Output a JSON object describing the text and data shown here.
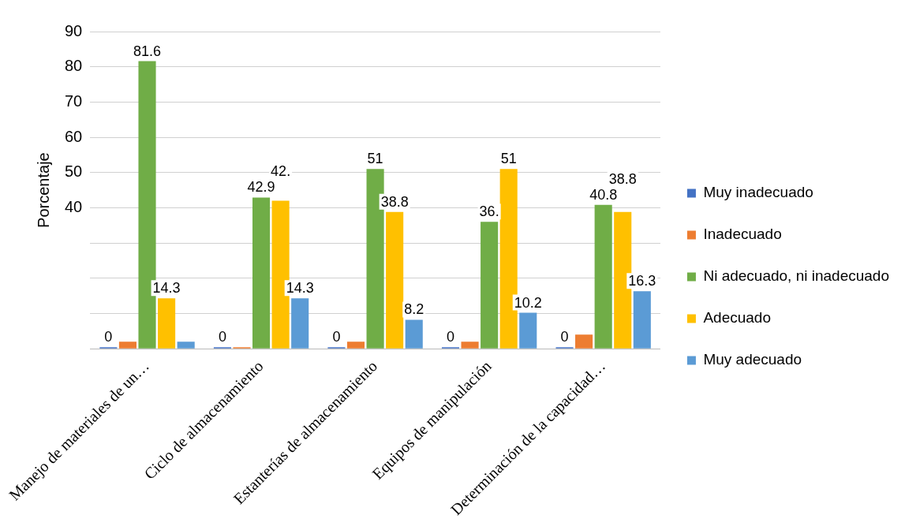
{
  "chart_data": {
    "type": "bar",
    "ylabel": "Porcentaje",
    "categories": [
      "Manejo de materiales de un…",
      "Ciclo de almacenamiento",
      "Estanterías de almacenamiento",
      "Equipos de manipulación",
      "Determinación de la capacidad…"
    ],
    "series": [
      {
        "name": "Muy inadecuado",
        "color": "#4472c4",
        "values": [
          0,
          0,
          0,
          0,
          0
        ],
        "value_labels": [
          "0",
          "0",
          "0",
          "0",
          "0"
        ]
      },
      {
        "name": "Inadecuado",
        "color": "#ed7d31",
        "values": [
          2,
          0,
          2,
          2,
          4
        ],
        "value_labels": [
          null,
          null,
          null,
          null,
          null
        ]
      },
      {
        "name": "Ni adecuado, ni inadecuado",
        "color": "#70ad47",
        "values": [
          81.6,
          42.9,
          51,
          36,
          40.8
        ],
        "value_labels": [
          "81.6",
          "42.9",
          "51",
          "36.",
          "40.8"
        ]
      },
      {
        "name": "Adecuado",
        "color": "#ffc000",
        "values": [
          14.3,
          42,
          38.8,
          51,
          38.8
        ],
        "value_labels": [
          "14.3",
          "42.",
          "38.8",
          "51",
          "38.8"
        ]
      },
      {
        "name": "Muy adecuado",
        "color": "#5b9bd5",
        "values": [
          2,
          14.3,
          8.2,
          10.2,
          16.3
        ],
        "value_labels": [
          null,
          "14.3",
          "8.2",
          "10.2",
          "16.3"
        ]
      }
    ],
    "ylim": [
      0,
      90
    ],
    "yticks": [
      {
        "value": 0,
        "label": null
      },
      {
        "value": 10,
        "label": null
      },
      {
        "value": 20,
        "label": null
      },
      {
        "value": 30,
        "label": null
      },
      40,
      50,
      60,
      70,
      80,
      90
    ],
    "grid": "y",
    "legend": "right"
  }
}
